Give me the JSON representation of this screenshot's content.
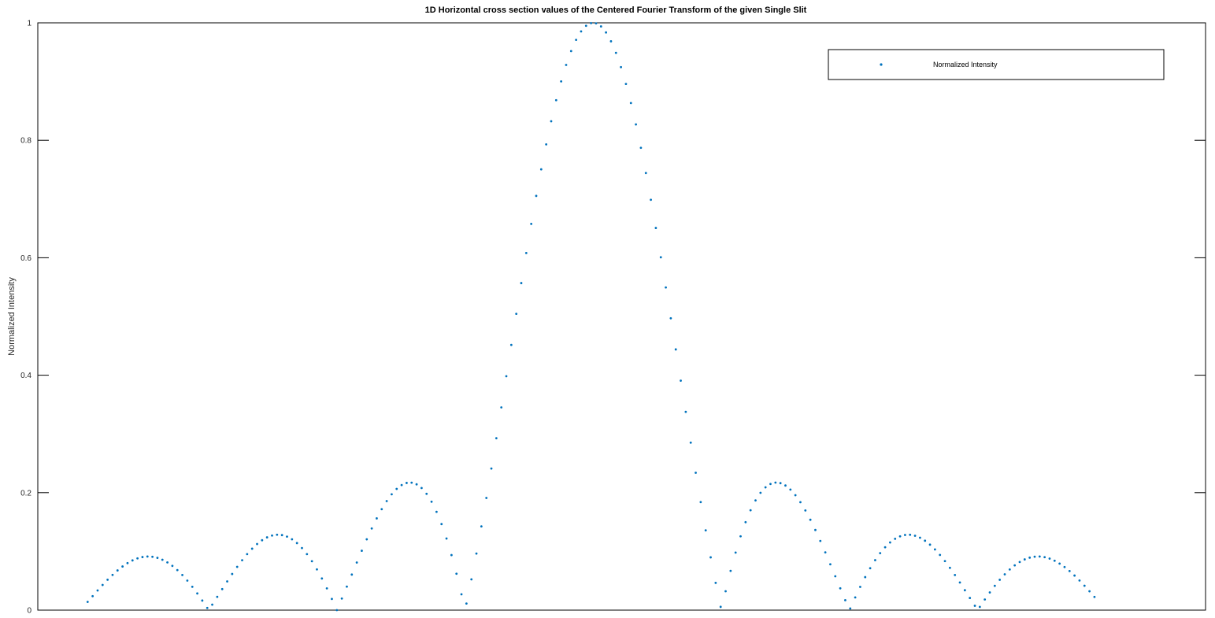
{
  "chart_data": {
    "type": "scatter",
    "title": "1D Horizontal cross section values of the Centered Fourier Transform of the given Single Slit",
    "xlabel": "",
    "ylabel": "Normalized Intensity",
    "ylim": [
      0,
      1
    ],
    "yticks": [
      "0",
      "0.2",
      "0.4",
      "0.6",
      "0.8",
      "1"
    ],
    "xlim": [
      -40,
      42
    ],
    "grid": false,
    "legend_position": "top-right",
    "series_color": "#0072BD",
    "series": [
      {
        "name": "Normalized Intensity",
        "x_range": [
          -36.5,
          34.5
        ],
        "x_step": 0.35,
        "function": "sinc^2 shaped: |sin(pi*u/9)/(pi*u/9)| with sub-lobes"
      }
    ]
  }
}
